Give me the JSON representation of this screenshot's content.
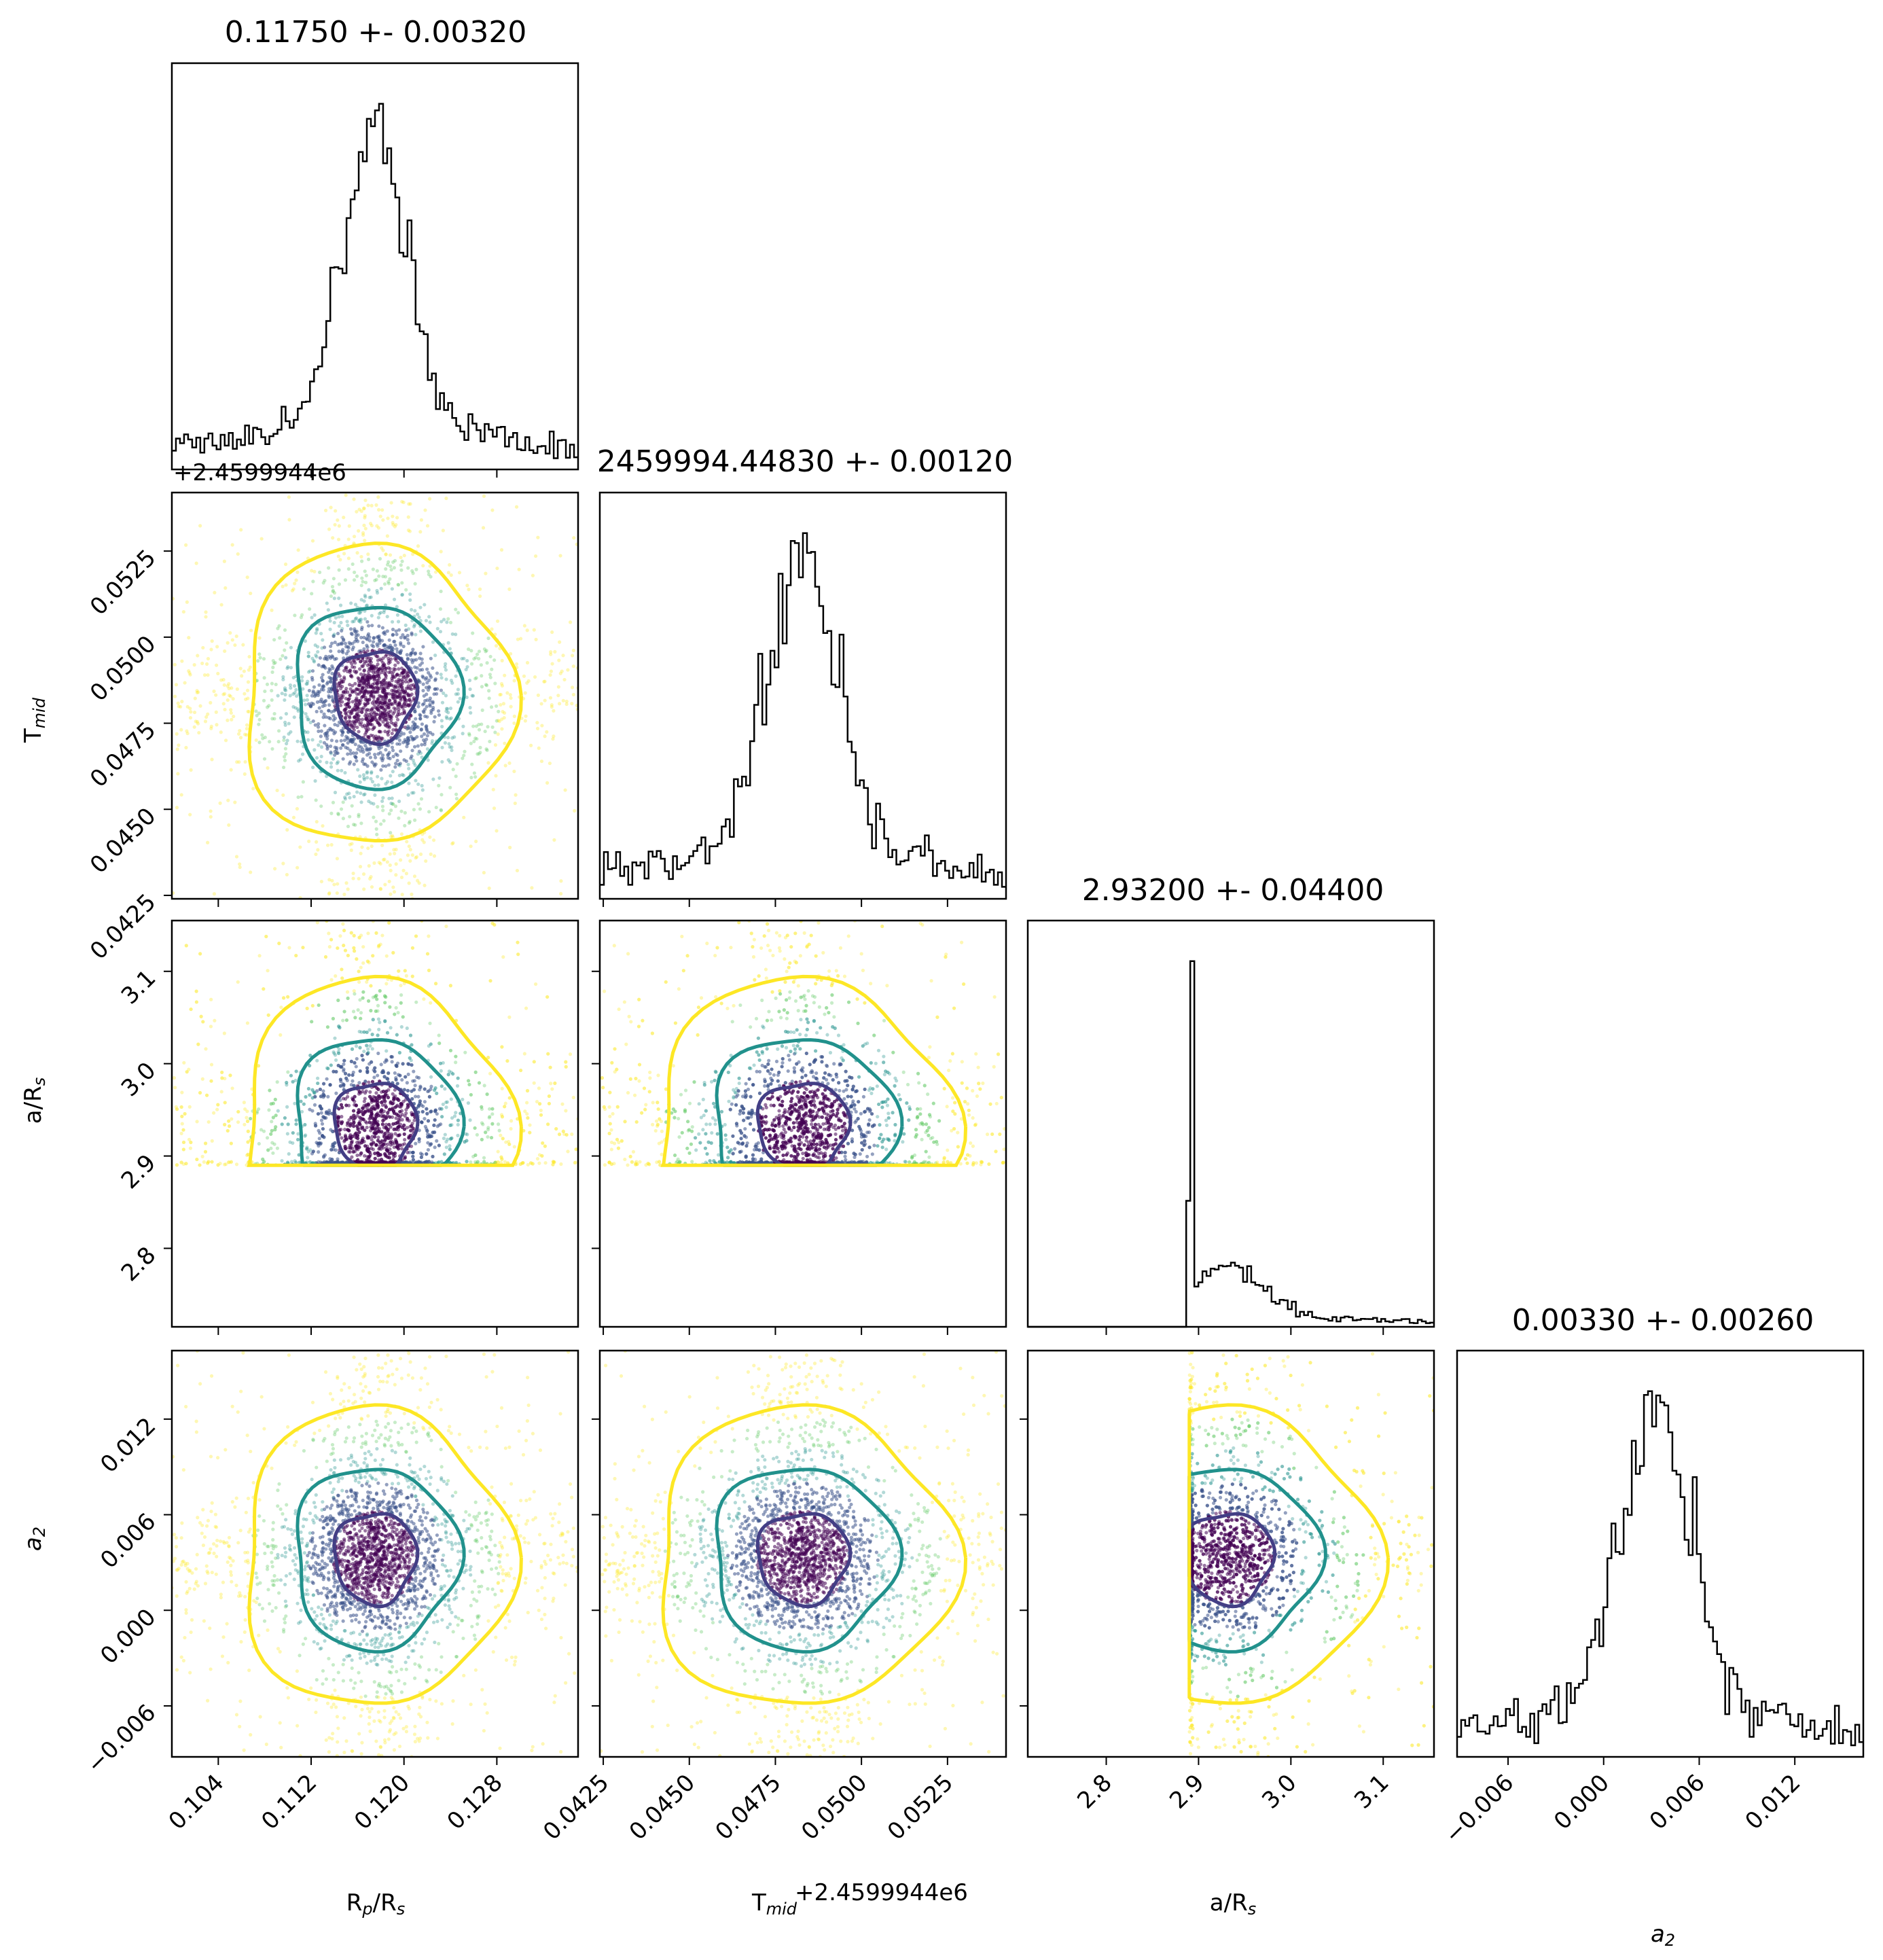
{
  "figure": {
    "type": "corner plot",
    "parameters": [
      "Rp/Rs",
      "Tmid",
      "a/Rs",
      "a2"
    ]
  },
  "panel_titles": [
    "0.11750 +- 0.00320",
    "2459994.44830 +- 0.00120",
    "2.93200 +- 0.04400",
    "0.00330 +- 0.00260"
  ],
  "axis_labels": {
    "x": [
      "R_p/R_s",
      "T_mid",
      "a/R_s",
      "a_2"
    ],
    "y": [
      "T_mid",
      "a/R_s",
      "a_2"
    ]
  },
  "offset_labels": {
    "tmid_y": "+2.4599944e6",
    "tmid_x": "+2.4599944e6"
  },
  "colors": {
    "contour_inner": "#433e85",
    "contour_mid": "#21918c",
    "contour_outer": "#fde725",
    "points": [
      "#440154",
      "#3b528b",
      "#21918c",
      "#5ec962",
      "#fde725"
    ],
    "hist": "#000000"
  },
  "chart_data": {
    "type": "scatter",
    "parameters": [
      {
        "name": "Rp/Rs",
        "mean": 0.1175,
        "std": 0.0032,
        "range": [
          0.1,
          0.135
        ],
        "ticks": [
          0.104,
          0.112,
          0.12,
          0.128
        ],
        "tick_labels": [
          "0.104",
          "0.112",
          "0.120",
          "0.128"
        ]
      },
      {
        "name": "Tmid",
        "mean": 0.0483,
        "std": 0.0012,
        "range": [
          0.0424,
          0.0542
        ],
        "ticks": [
          0.0425,
          0.045,
          0.0475,
          0.05,
          0.0525
        ],
        "tick_labels": [
          "0.0425",
          "0.0450",
          "0.0475",
          "0.0500",
          "0.0525"
        ],
        "offset": 2459994.4
      },
      {
        "name": "a/Rs",
        "mean": 2.932,
        "std": 0.044,
        "range": [
          2.715,
          3.155
        ],
        "ticks": [
          2.8,
          2.9,
          3.0,
          3.1
        ],
        "tick_labels": [
          "2.8",
          "2.9",
          "3.0",
          "3.1"
        ],
        "lower_bound": 2.89
      },
      {
        "name": "a2",
        "mean": 0.0033,
        "std": 0.0026,
        "range": [
          -0.0092,
          0.0163
        ],
        "ticks": [
          -0.006,
          0.0,
          0.006,
          0.012
        ],
        "tick_labels": [
          "−0.006",
          "0.000",
          "0.006",
          "0.012"
        ]
      }
    ],
    "histograms": [
      {
        "parameter": "Rp/Rs",
        "peak": 0.1175
      },
      {
        "parameter": "Tmid",
        "peak": 0.0484
      },
      {
        "parameter": "a/Rs",
        "peak": 2.935,
        "cutoff": 2.89
      },
      {
        "parameter": "a2",
        "peak": 0.0036
      }
    ],
    "contour_levels": [
      "inner",
      "mid",
      "outer"
    ],
    "grid": false,
    "legend": "none"
  }
}
